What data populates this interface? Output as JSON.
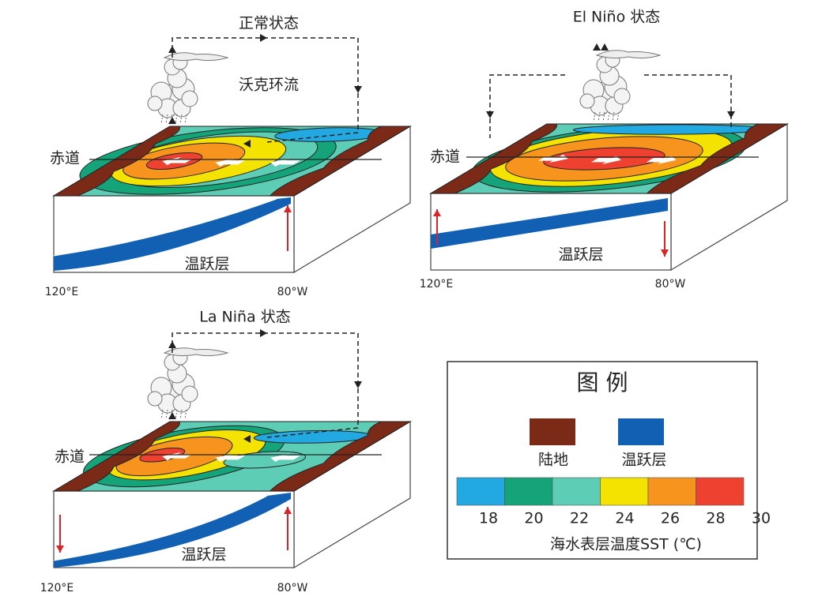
{
  "panels": [
    {
      "title": "正常状态",
      "circulation_label": "沃克环流",
      "equator_label": "赤道",
      "thermocline_label": "温跃层",
      "lon_west": "120°E",
      "lon_east": "80°W"
    },
    {
      "title": "El Niño 状态",
      "equator_label": "赤道",
      "thermocline_label": "温跃层",
      "lon_west": "120°E",
      "lon_east": "80°W"
    },
    {
      "title": "La Niña 状态",
      "equator_label": "赤道",
      "thermocline_label": "温跃层",
      "lon_west": "120°E",
      "lon_east": "80°W"
    }
  ],
  "legend": {
    "title": "图 例",
    "land": "陆地",
    "thermocline": "温跃层",
    "sst_colors": [
      "#22a9e1",
      "#15a37a",
      "#5ecdb6",
      "#f4e200",
      "#f7941d",
      "#ee4130"
    ],
    "sst_ticks": [
      18,
      20,
      22,
      24,
      26,
      28,
      30
    ],
    "sst_label": "海水表层温度SST (℃)"
  }
}
